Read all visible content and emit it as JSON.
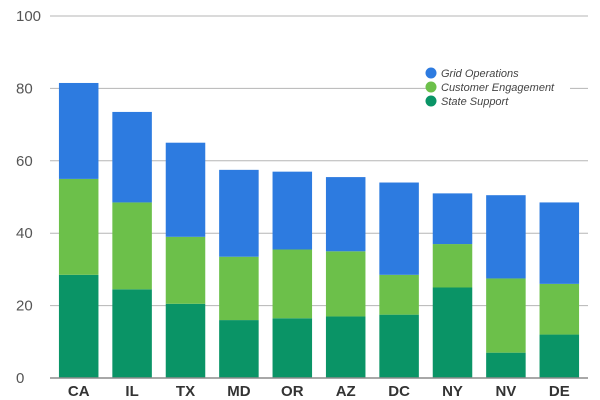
{
  "chart_data": {
    "type": "bar",
    "stacked": true,
    "title": "",
    "xlabel": "",
    "ylabel": "",
    "ylim": [
      0,
      100
    ],
    "yticks": [
      0,
      20,
      40,
      60,
      80,
      100
    ],
    "grid": true,
    "legend_position": "top-right",
    "categories": [
      "CA",
      "IL",
      "TX",
      "MD",
      "OR",
      "AZ",
      "DC",
      "NY",
      "NV",
      "DE"
    ],
    "series": [
      {
        "name": "State Support",
        "color": "#0a9466",
        "values": [
          28.5,
          24.5,
          20.5,
          16,
          16.5,
          17,
          17.5,
          25,
          7,
          12
        ]
      },
      {
        "name": "Customer Engagement",
        "color": "#6cc04a",
        "values": [
          26.5,
          24,
          18.5,
          17.5,
          19,
          18,
          11,
          12,
          20.5,
          14
        ]
      },
      {
        "name": "Grid Operations",
        "color": "#2d7be0",
        "values": [
          26.5,
          25,
          26,
          24,
          21.5,
          20.5,
          25.5,
          14,
          23,
          22.5
        ]
      }
    ]
  }
}
